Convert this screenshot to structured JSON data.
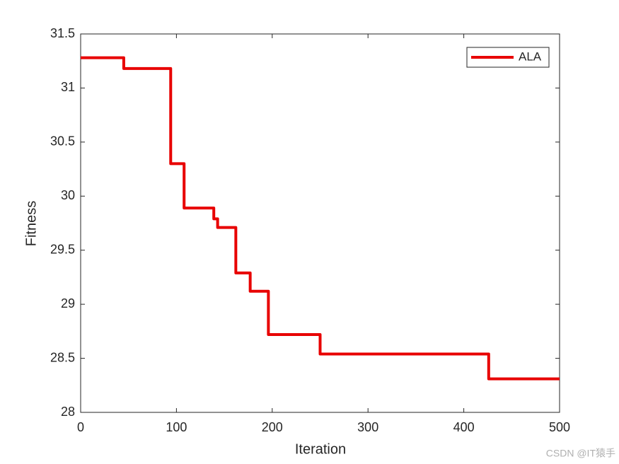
{
  "chart_data": {
    "type": "line",
    "xlabel": "Iteration",
    "ylabel": "Fitness",
    "x": [
      0,
      45,
      45,
      94,
      94,
      108,
      108,
      139,
      139,
      143,
      143,
      162,
      162,
      177,
      177,
      196,
      196,
      250,
      250,
      426,
      426,
      500
    ],
    "series": [
      {
        "name": "ALA",
        "color": "#e80000",
        "values": [
          31.28,
          31.28,
          31.18,
          31.18,
          30.3,
          30.3,
          29.89,
          29.89,
          29.79,
          29.79,
          29.71,
          29.71,
          29.29,
          29.29,
          29.12,
          29.12,
          28.72,
          28.72,
          28.54,
          28.54,
          28.31,
          28.31
        ]
      }
    ],
    "xlim": [
      0,
      500
    ],
    "xticks": [
      0,
      100,
      200,
      300,
      400,
      500
    ],
    "ylim": [
      28,
      31.5
    ],
    "yticks": [
      28,
      28.5,
      29,
      29.5,
      30,
      30.5,
      31,
      31.5
    ],
    "grid": false,
    "legend": "northeast"
  },
  "watermark": "CSDN @IT猿手"
}
